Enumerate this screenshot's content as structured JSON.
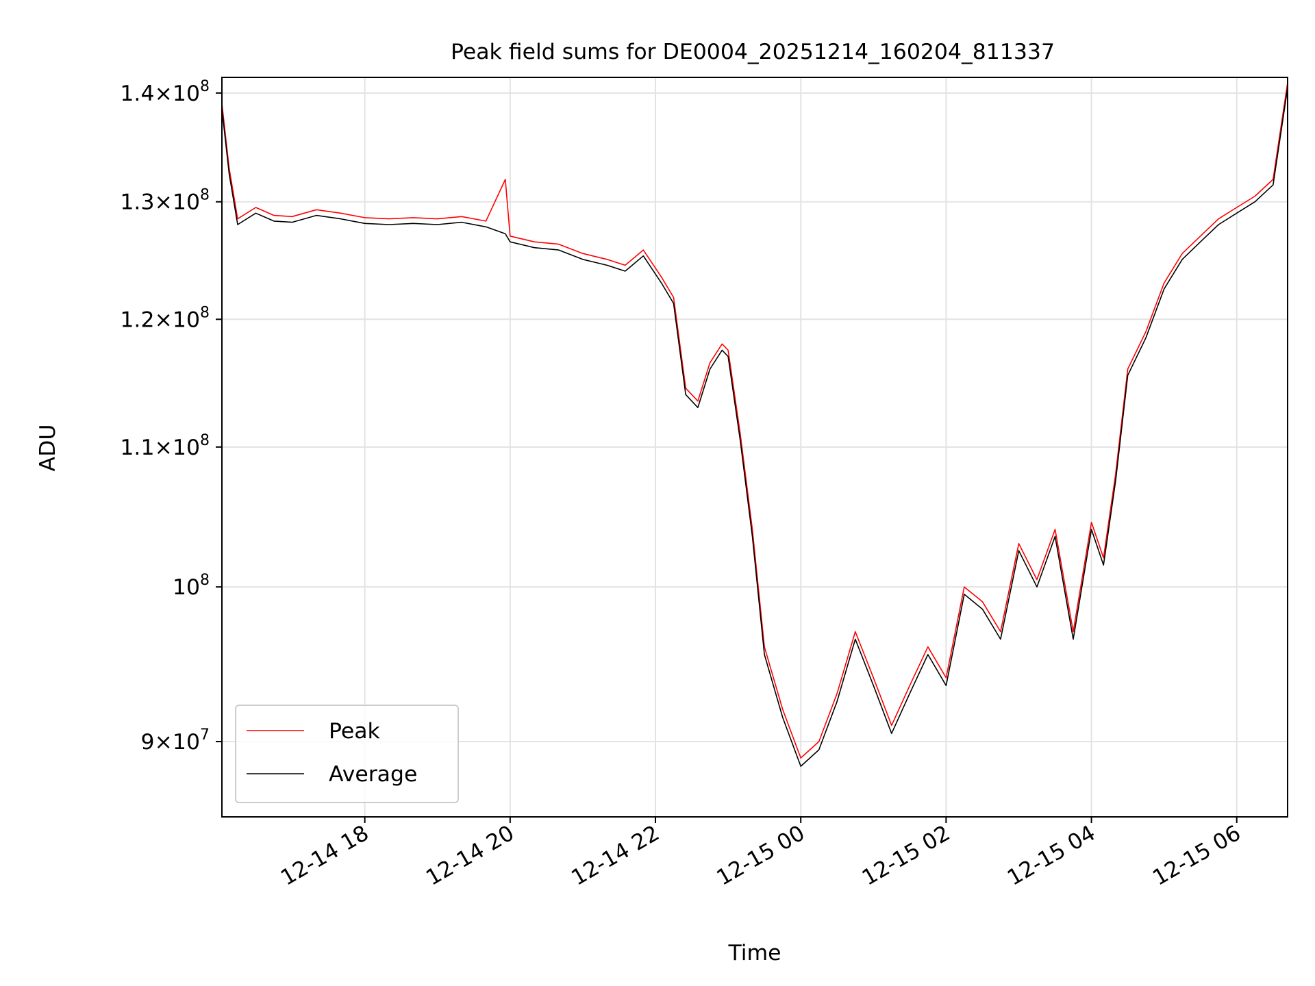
{
  "chart_data": {
    "type": "line",
    "title": "Peak field sums for DE0004_20251214_160204_811337",
    "xlabel": "Time",
    "ylabel": "ADU",
    "y_scale": "log",
    "grid": true,
    "legend_position": "lower-left",
    "xlim": [
      "2025-12-14T16:02",
      "2025-12-15T06:42"
    ],
    "ylim": [
      85500000,
      141500000
    ],
    "x_ticks": [
      {
        "t": "2025-12-14T18:00",
        "label": "12-14 18"
      },
      {
        "t": "2025-12-14T20:00",
        "label": "12-14 20"
      },
      {
        "t": "2025-12-14T22:00",
        "label": "12-14 22"
      },
      {
        "t": "2025-12-15T00:00",
        "label": "12-15 00"
      },
      {
        "t": "2025-12-15T02:00",
        "label": "12-15 02"
      },
      {
        "t": "2025-12-15T04:00",
        "label": "12-15 04"
      },
      {
        "t": "2025-12-15T06:00",
        "label": "12-15 06"
      }
    ],
    "y_ticks": [
      {
        "v": 90000000,
        "mant": "9",
        "exp": "7"
      },
      {
        "v": 100000000,
        "mant": "",
        "exp": "8"
      },
      {
        "v": 110000000,
        "mant": "1.1",
        "exp": "8"
      },
      {
        "v": 120000000,
        "mant": "1.2",
        "exp": "8"
      },
      {
        "v": 130000000,
        "mant": "1.3",
        "exp": "8"
      },
      {
        "v": 140000000,
        "mant": "1.4",
        "exp": "8"
      }
    ],
    "series": [
      {
        "name": "Peak",
        "color": "#ff0000",
        "x": [
          "2025-12-14T16:02",
          "2025-12-14T16:08",
          "2025-12-14T16:15",
          "2025-12-14T16:30",
          "2025-12-14T16:45",
          "2025-12-14T17:00",
          "2025-12-14T17:20",
          "2025-12-14T17:40",
          "2025-12-14T18:00",
          "2025-12-14T18:20",
          "2025-12-14T18:40",
          "2025-12-14T19:00",
          "2025-12-14T19:20",
          "2025-12-14T19:40",
          "2025-12-14T19:56",
          "2025-12-14T20:00",
          "2025-12-14T20:20",
          "2025-12-14T20:40",
          "2025-12-14T21:00",
          "2025-12-14T21:20",
          "2025-12-14T21:35",
          "2025-12-14T21:50",
          "2025-12-14T22:05",
          "2025-12-14T22:15",
          "2025-12-14T22:25",
          "2025-12-14T22:35",
          "2025-12-14T22:45",
          "2025-12-14T22:55",
          "2025-12-14T23:00",
          "2025-12-14T23:10",
          "2025-12-14T23:20",
          "2025-12-14T23:30",
          "2025-12-14T23:45",
          "2025-12-15T00:00",
          "2025-12-15T00:15",
          "2025-12-15T00:30",
          "2025-12-15T00:45",
          "2025-12-15T01:00",
          "2025-12-15T01:15",
          "2025-12-15T01:30",
          "2025-12-15T01:45",
          "2025-12-15T02:00",
          "2025-12-15T02:15",
          "2025-12-15T02:30",
          "2025-12-15T02:45",
          "2025-12-15T03:00",
          "2025-12-15T03:15",
          "2025-12-15T03:30",
          "2025-12-15T03:45",
          "2025-12-15T04:00",
          "2025-12-15T04:10",
          "2025-12-15T04:20",
          "2025-12-15T04:30",
          "2025-12-15T04:45",
          "2025-12-15T05:00",
          "2025-12-15T05:15",
          "2025-12-15T05:30",
          "2025-12-15T05:45",
          "2025-12-15T06:00",
          "2025-12-15T06:15",
          "2025-12-15T06:30",
          "2025-12-15T06:42"
        ],
        "values": [
          139000000,
          133000000,
          128500000,
          129500000,
          128800000,
          128700000,
          129300000,
          129000000,
          128600000,
          128500000,
          128600000,
          128500000,
          128700000,
          128300000,
          132000000,
          127000000,
          126500000,
          126300000,
          125500000,
          125000000,
          124500000,
          125800000,
          123500000,
          121800000,
          114500000,
          113500000,
          116500000,
          118000000,
          117500000,
          111000000,
          104000000,
          96000000,
          92000000,
          89000000,
          90000000,
          93000000,
          97000000,
          94000000,
          91000000,
          93500000,
          96000000,
          94000000,
          100000000,
          99000000,
          97000000,
          103000000,
          100500000,
          104000000,
          97000000,
          104500000,
          102000000,
          108000000,
          116000000,
          119000000,
          123000000,
          125500000,
          127000000,
          128500000,
          129500000,
          130500000,
          132000000,
          141000000
        ]
      },
      {
        "name": "Average",
        "color": "#000000",
        "x": [
          "2025-12-14T16:02",
          "2025-12-14T16:08",
          "2025-12-14T16:15",
          "2025-12-14T16:30",
          "2025-12-14T16:45",
          "2025-12-14T17:00",
          "2025-12-14T17:20",
          "2025-12-14T17:40",
          "2025-12-14T18:00",
          "2025-12-14T18:20",
          "2025-12-14T18:40",
          "2025-12-14T19:00",
          "2025-12-14T19:20",
          "2025-12-14T19:40",
          "2025-12-14T19:56",
          "2025-12-14T20:00",
          "2025-12-14T20:20",
          "2025-12-14T20:40",
          "2025-12-14T21:00",
          "2025-12-14T21:20",
          "2025-12-14T21:35",
          "2025-12-14T21:50",
          "2025-12-14T22:05",
          "2025-12-14T22:15",
          "2025-12-14T22:25",
          "2025-12-14T22:35",
          "2025-12-14T22:45",
          "2025-12-14T22:55",
          "2025-12-14T23:00",
          "2025-12-14T23:10",
          "2025-12-14T23:20",
          "2025-12-14T23:30",
          "2025-12-14T23:45",
          "2025-12-15T00:00",
          "2025-12-15T00:15",
          "2025-12-15T00:30",
          "2025-12-15T00:45",
          "2025-12-15T01:00",
          "2025-12-15T01:15",
          "2025-12-15T01:30",
          "2025-12-15T01:45",
          "2025-12-15T02:00",
          "2025-12-15T02:15",
          "2025-12-15T02:30",
          "2025-12-15T02:45",
          "2025-12-15T03:00",
          "2025-12-15T03:15",
          "2025-12-15T03:30",
          "2025-12-15T03:45",
          "2025-12-15T04:00",
          "2025-12-15T04:10",
          "2025-12-15T04:20",
          "2025-12-15T04:30",
          "2025-12-15T04:45",
          "2025-12-15T05:00",
          "2025-12-15T05:15",
          "2025-12-15T05:30",
          "2025-12-15T05:45",
          "2025-12-15T06:00",
          "2025-12-15T06:15",
          "2025-12-15T06:30",
          "2025-12-15T06:42"
        ],
        "values": [
          138500000,
          132500000,
          128000000,
          129000000,
          128300000,
          128200000,
          128800000,
          128500000,
          128100000,
          128000000,
          128100000,
          128000000,
          128200000,
          127800000,
          127200000,
          126500000,
          126000000,
          125800000,
          125000000,
          124500000,
          124000000,
          125300000,
          123000000,
          121300000,
          114000000,
          113000000,
          116000000,
          117500000,
          117000000,
          110500000,
          103500000,
          95500000,
          91500000,
          88500000,
          89500000,
          92500000,
          96500000,
          93500000,
          90500000,
          93000000,
          95500000,
          93500000,
          99500000,
          98500000,
          96500000,
          102500000,
          100000000,
          103500000,
          96500000,
          104000000,
          101500000,
          107500000,
          115500000,
          118500000,
          122500000,
          125000000,
          126500000,
          128000000,
          129000000,
          130000000,
          131500000,
          140500000
        ]
      }
    ]
  }
}
